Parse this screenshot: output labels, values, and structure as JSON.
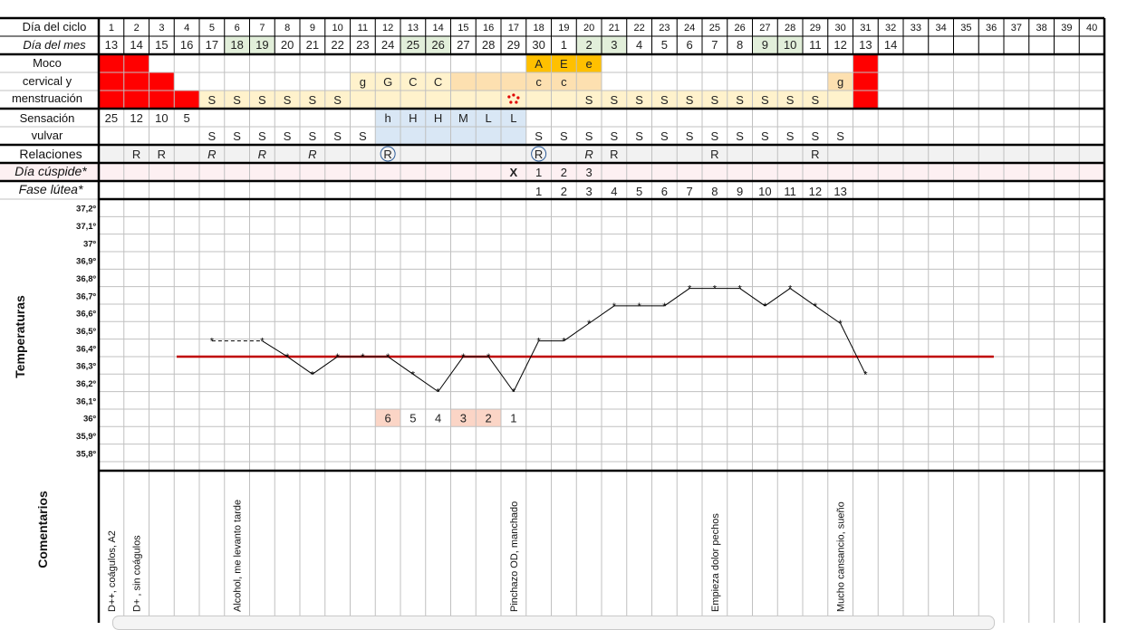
{
  "labels": {
    "ciclo": "Día del ciclo",
    "mes": "Día del mes",
    "moco": [
      "Moco",
      "cervical y",
      "menstruación"
    ],
    "sensacion": [
      "Sensación",
      "vulvar"
    ],
    "relaciones": "Relaciones",
    "cuspide": "Día cúspide*",
    "lutea": "Fase lútea*",
    "temperaturas": "Temperaturas",
    "comentarios": "Comentarios"
  },
  "cycle_days": [
    "1",
    "2",
    "3",
    "4",
    "5",
    "6",
    "7",
    "8",
    "9",
    "10",
    "11",
    "12",
    "13",
    "14",
    "15",
    "16",
    "17",
    "18",
    "19",
    "20",
    "21",
    "22",
    "23",
    "24",
    "25",
    "26",
    "27",
    "28",
    "29",
    "30",
    "31",
    "32",
    "33",
    "34",
    "35",
    "36",
    "37",
    "38",
    "39",
    "40"
  ],
  "month_days": [
    "13",
    "14",
    "15",
    "16",
    "17",
    "18",
    "19",
    "20",
    "21",
    "22",
    "23",
    "24",
    "25",
    "26",
    "27",
    "28",
    "29",
    "30",
    "1",
    "2",
    "3",
    "4",
    "5",
    "6",
    "7",
    "8",
    "9",
    "10",
    "11",
    "12",
    "13",
    "14"
  ],
  "month_highlight": [
    6,
    7,
    13,
    14,
    20,
    21,
    27,
    28
  ],
  "colors": {
    "red": "#ff0000",
    "orange": "#ffc000",
    "peach": "#fde0b0",
    "cream": "#fff2cc",
    "blue": "#d9e7f5",
    "green": "#e2efda",
    "pink_row": "#fdf0f2",
    "gray_row": "#f2f2f2",
    "coverline": "#c00000",
    "temp_line": "#000000",
    "grid": "#c0c0c0",
    "salmon": "#fbd5c6",
    "light_salmon": "#fce4d6",
    "marker_red": "#c00000"
  },
  "moco_row1": [
    {
      "d": 18,
      "v": "A"
    },
    {
      "d": 19,
      "v": "E"
    },
    {
      "d": 20,
      "v": "e"
    }
  ],
  "moco_row2": [
    {
      "d": 11,
      "v": "g"
    },
    {
      "d": 12,
      "v": "G"
    },
    {
      "d": 13,
      "v": "C"
    },
    {
      "d": 14,
      "v": "C"
    },
    {
      "d": 18,
      "v": "c"
    },
    {
      "d": 19,
      "v": "c"
    },
    {
      "d": 30,
      "v": "g"
    }
  ],
  "moco_row3": [
    {
      "d": 5,
      "v": "S"
    },
    {
      "d": 6,
      "v": "S"
    },
    {
      "d": 7,
      "v": "S"
    },
    {
      "d": 8,
      "v": "S"
    },
    {
      "d": 9,
      "v": "S"
    },
    {
      "d": 10,
      "v": "S"
    },
    {
      "d": 20,
      "v": "S"
    },
    {
      "d": 21,
      "v": "S"
    },
    {
      "d": 22,
      "v": "S"
    },
    {
      "d": 23,
      "v": "S"
    },
    {
      "d": 24,
      "v": "S"
    },
    {
      "d": 25,
      "v": "S"
    },
    {
      "d": 26,
      "v": "S"
    },
    {
      "d": 27,
      "v": "S"
    },
    {
      "d": 28,
      "v": "S"
    },
    {
      "d": 29,
      "v": "S"
    }
  ],
  "sens_row1": [
    {
      "d": 1,
      "v": "25"
    },
    {
      "d": 2,
      "v": "12"
    },
    {
      "d": 3,
      "v": "10"
    },
    {
      "d": 4,
      "v": "5"
    },
    {
      "d": 12,
      "v": "h"
    },
    {
      "d": 13,
      "v": "H"
    },
    {
      "d": 14,
      "v": "H"
    },
    {
      "d": 15,
      "v": "M"
    },
    {
      "d": 16,
      "v": "L"
    },
    {
      "d": 17,
      "v": "L"
    }
  ],
  "sens_row2": [
    {
      "d": 5,
      "v": "S"
    },
    {
      "d": 6,
      "v": "S"
    },
    {
      "d": 7,
      "v": "S"
    },
    {
      "d": 8,
      "v": "S"
    },
    {
      "d": 9,
      "v": "S"
    },
    {
      "d": 10,
      "v": "S"
    },
    {
      "d": 11,
      "v": "S"
    },
    {
      "d": 18,
      "v": "S"
    },
    {
      "d": 19,
      "v": "S"
    },
    {
      "d": 20,
      "v": "S"
    },
    {
      "d": 21,
      "v": "S"
    },
    {
      "d": 22,
      "v": "S"
    },
    {
      "d": 23,
      "v": "S"
    },
    {
      "d": 24,
      "v": "S"
    },
    {
      "d": 25,
      "v": "S"
    },
    {
      "d": 26,
      "v": "S"
    },
    {
      "d": 27,
      "v": "S"
    },
    {
      "d": 28,
      "v": "S"
    },
    {
      "d": 29,
      "v": "S"
    },
    {
      "d": 30,
      "v": "S"
    }
  ],
  "relaciones": [
    {
      "d": 2,
      "v": "R"
    },
    {
      "d": 3,
      "v": "R"
    },
    {
      "d": 5,
      "v": "R",
      "it": true
    },
    {
      "d": 7,
      "v": "R",
      "it": true
    },
    {
      "d": 9,
      "v": "R",
      "it": true
    },
    {
      "d": 12,
      "v": "R",
      "c": true
    },
    {
      "d": 18,
      "v": "R",
      "c": true
    },
    {
      "d": 20,
      "v": "R",
      "it": true
    },
    {
      "d": 21,
      "v": "R"
    },
    {
      "d": 25,
      "v": "R"
    },
    {
      "d": 29,
      "v": "R"
    }
  ],
  "cuspide": [
    {
      "d": 17,
      "v": "X",
      "b": true
    },
    {
      "d": 18,
      "v": "1"
    },
    {
      "d": 19,
      "v": "2"
    },
    {
      "d": 20,
      "v": "3"
    }
  ],
  "lutea": [
    {
      "d": 18,
      "v": "1",
      "r": true
    },
    {
      "d": 19,
      "v": "2",
      "r": true
    },
    {
      "d": 20,
      "v": "3",
      "r": true
    },
    {
      "d": 21,
      "v": "4"
    },
    {
      "d": 22,
      "v": "5"
    },
    {
      "d": 23,
      "v": "6"
    },
    {
      "d": 24,
      "v": "7"
    },
    {
      "d": 25,
      "v": "8"
    },
    {
      "d": 26,
      "v": "9"
    },
    {
      "d": 27,
      "v": "10"
    },
    {
      "d": 28,
      "v": "11"
    },
    {
      "d": 29,
      "v": "12"
    },
    {
      "d": 30,
      "v": "13"
    }
  ],
  "count_marks": [
    {
      "d": 12,
      "v": "6"
    },
    {
      "d": 13,
      "v": "5"
    },
    {
      "d": 14,
      "v": "4"
    },
    {
      "d": 15,
      "v": "3"
    },
    {
      "d": 16,
      "v": "2"
    },
    {
      "d": 17,
      "v": "1"
    }
  ],
  "comments": [
    {
      "d": 1,
      "v": "D++, coágulos, A2"
    },
    {
      "d": 2,
      "v": "D+ , sin coágulos"
    },
    {
      "d": 6,
      "v": "Alcohol, me levanto tarde"
    },
    {
      "d": 17,
      "v": "Pinchazo OD, manchado"
    },
    {
      "d": 25,
      "v": "Empieza dolor pechos"
    },
    {
      "d": 30,
      "v": "Mucho cansancio, sueño"
    }
  ],
  "chart_data": {
    "type": "line",
    "ylabel": "Temperaturas",
    "yticks": [
      "37,2º",
      "37,1º",
      "37º",
      "36,9º",
      "36,8º",
      "36,7º",
      "36,6º",
      "36,5º",
      "36,4º",
      "36,3º",
      "36,2º",
      "36,1º",
      "36º",
      "35,9º",
      "35,8º"
    ],
    "ylim": [
      35.8,
      37.2
    ],
    "series": [
      {
        "x": [
          5,
          7,
          8,
          9,
          10,
          11,
          12,
          13,
          14,
          15,
          16,
          17,
          18,
          19,
          20,
          21,
          22,
          23,
          24,
          25,
          26,
          27,
          28,
          29,
          30,
          31
        ],
        "y": [
          36.44,
          36.44,
          36.35,
          36.25,
          36.35,
          36.35,
          36.35,
          36.25,
          36.15,
          36.35,
          36.35,
          36.15,
          36.44,
          36.44,
          36.54,
          36.64,
          36.64,
          36.64,
          36.74,
          36.74,
          36.74,
          36.64,
          36.74,
          36.64,
          36.54,
          36.25
        ]
      }
    ],
    "dashed_segment": [
      5,
      7
    ],
    "coverline": {
      "y": 36.35,
      "x_from": 4,
      "x_to": 36
    }
  }
}
